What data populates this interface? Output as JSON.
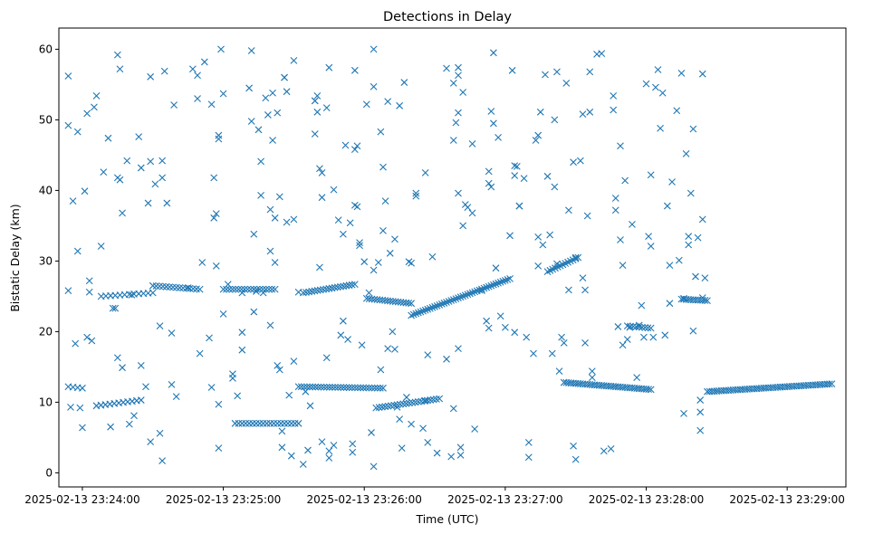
{
  "chart_data": {
    "type": "scatter",
    "title": "Detections in Delay",
    "xlabel": "Time (UTC)",
    "ylabel": "Bistatic Delay (km)",
    "marker": "x",
    "color": "#1f77b4",
    "x_unit": "seconds after 2025-02-13 23:24:00 UTC",
    "xlim": [
      -10,
      325
    ],
    "ylim": [
      -2,
      63
    ],
    "x_ticks": [
      {
        "value": 0,
        "label": "2025-02-13 23:24:00"
      },
      {
        "value": 60,
        "label": "2025-02-13 23:25:00"
      },
      {
        "value": 120,
        "label": "2025-02-13 23:26:00"
      },
      {
        "value": 180,
        "label": "2025-02-13 23:27:00"
      },
      {
        "value": 240,
        "label": "2025-02-13 23:28:00"
      },
      {
        "value": 300,
        "label": "2025-02-13 23:29:00"
      }
    ],
    "y_ticks": [
      {
        "value": 0,
        "label": "0"
      },
      {
        "value": 10,
        "label": "10"
      },
      {
        "value": 20,
        "label": "20"
      },
      {
        "value": 30,
        "label": "30"
      },
      {
        "value": 40,
        "label": "40"
      },
      {
        "value": 50,
        "label": "50"
      },
      {
        "value": 60,
        "label": "60"
      }
    ],
    "tracks": [
      {
        "name": "track-near-12km",
        "x_start": -6,
        "x_end": 0,
        "y_start": 12.2,
        "y_end": 12.0,
        "step": 2
      },
      {
        "name": "track-near-10km",
        "x_start": 6,
        "x_end": 25,
        "y_start": 9.5,
        "y_end": 10.3,
        "step": 2
      },
      {
        "name": "track-early-25km",
        "x_start": 8,
        "x_end": 30,
        "y_start": 25.0,
        "y_end": 25.5,
        "step": 2
      },
      {
        "name": "track-25km-a",
        "x_start": 30,
        "x_end": 50,
        "y_start": 26.5,
        "y_end": 26.0,
        "step": 1.4
      },
      {
        "name": "track-25km-b",
        "x_start": 60,
        "x_end": 82,
        "y_start": 26.0,
        "y_end": 26.0,
        "step": 1.3
      },
      {
        "name": "track-7km",
        "x_start": 65,
        "x_end": 92,
        "y_start": 7.0,
        "y_end": 7.0,
        "step": 1.5
      },
      {
        "name": "track-12km-mid",
        "x_start": 92,
        "x_end": 128,
        "y_start": 12.2,
        "y_end": 12.0,
        "step": 1.2
      },
      {
        "name": "track-25km-mid",
        "x_start": 94,
        "x_end": 116,
        "y_start": 25.5,
        "y_end": 26.7,
        "step": 1.2
      },
      {
        "name": "track-descending-24km",
        "x_start": 121,
        "x_end": 140,
        "y_start": 24.7,
        "y_end": 24.0,
        "step": 1.1
      },
      {
        "name": "track-rising-23-to-27km",
        "x_start": 140,
        "x_end": 182,
        "y_start": 22.3,
        "y_end": 27.5,
        "step": 1.0
      },
      {
        "name": "track-10km-mid",
        "x_start": 125,
        "x_end": 152,
        "y_start": 9.2,
        "y_end": 10.5,
        "step": 1.3
      },
      {
        "name": "track-rising-28-to-30km",
        "x_start": 198,
        "x_end": 211,
        "y_start": 28.5,
        "y_end": 30.5,
        "step": 1.1
      },
      {
        "name": "track-12km-late",
        "x_start": 205,
        "x_end": 242,
        "y_start": 12.8,
        "y_end": 11.8,
        "step": 1.0
      },
      {
        "name": "track-20km-late",
        "x_start": 232,
        "x_end": 242,
        "y_start": 20.8,
        "y_end": 20.5,
        "step": 1.2
      },
      {
        "name": "track-24km-late",
        "x_start": 255,
        "x_end": 266,
        "y_start": 24.6,
        "y_end": 24.4,
        "step": 1.0
      },
      {
        "name": "track-rising-11-to-12km",
        "x_start": 266,
        "x_end": 319,
        "y_start": 11.5,
        "y_end": 12.6,
        "step": 1.0
      }
    ],
    "points": [
      [
        -6,
        56.2
      ],
      [
        -6,
        49.2
      ],
      [
        -6,
        25.8
      ],
      [
        -5,
        9.3
      ],
      [
        -4,
        38.5
      ],
      [
        -3,
        18.3
      ],
      [
        -2,
        31.4
      ],
      [
        -2,
        48.3
      ],
      [
        -1,
        9.2
      ],
      [
        0,
        6.4
      ],
      [
        1,
        39.9
      ],
      [
        2,
        50.9
      ],
      [
        2,
        19.2
      ],
      [
        3,
        27.2
      ],
      [
        3,
        25.6
      ],
      [
        4,
        18.7
      ],
      [
        5,
        51.8
      ],
      [
        6,
        53.4
      ],
      [
        8,
        32.1
      ],
      [
        9,
        42.6
      ],
      [
        11,
        47.4
      ],
      [
        12,
        6.5
      ],
      [
        13,
        23.3
      ],
      [
        14,
        23.3
      ],
      [
        15,
        59.2
      ],
      [
        15,
        41.8
      ],
      [
        15,
        16.3
      ],
      [
        16,
        57.2
      ],
      [
        16,
        41.5
      ],
      [
        17,
        36.8
      ],
      [
        17,
        14.9
      ],
      [
        19,
        44.2
      ],
      [
        20,
        6.9
      ],
      [
        21,
        25.2
      ],
      [
        22,
        8.1
      ],
      [
        24,
        47.6
      ],
      [
        25,
        43.2
      ],
      [
        25,
        15.2
      ],
      [
        27,
        12.2
      ],
      [
        28,
        38.2
      ],
      [
        29,
        44.1
      ],
      [
        29,
        56.1
      ],
      [
        29,
        4.4
      ],
      [
        31,
        40.9
      ],
      [
        33,
        5.6
      ],
      [
        33,
        20.8
      ],
      [
        34,
        1.7
      ],
      [
        34,
        44.2
      ],
      [
        34,
        41.8
      ],
      [
        35,
        56.9
      ],
      [
        36,
        38.2
      ],
      [
        38,
        19.8
      ],
      [
        39,
        52.1
      ],
      [
        38,
        12.5
      ],
      [
        40,
        10.8
      ],
      [
        45,
        26.2
      ],
      [
        47,
        57.2
      ],
      [
        49,
        56.3
      ],
      [
        49,
        53
      ],
      [
        50,
        16.9
      ],
      [
        51,
        29.8
      ],
      [
        52,
        58.2
      ],
      [
        54,
        19.1
      ],
      [
        55,
        12.1
      ],
      [
        55,
        52.2
      ],
      [
        56,
        41.8
      ],
      [
        56,
        36.1
      ],
      [
        57,
        36.7
      ],
      [
        58,
        47.8
      ],
      [
        58,
        47.3
      ],
      [
        57,
        29.3
      ],
      [
        59,
        60
      ],
      [
        60,
        53.7
      ],
      [
        58,
        3.5
      ],
      [
        58,
        9.7
      ],
      [
        60,
        22.5
      ],
      [
        62,
        26.7
      ],
      [
        64,
        14
      ],
      [
        64,
        13.4
      ],
      [
        66,
        10.9
      ],
      [
        68,
        25.5
      ],
      [
        68,
        19.9
      ],
      [
        68,
        17.4
      ],
      [
        71,
        54.5
      ],
      [
        72,
        59.8
      ],
      [
        72,
        49.8
      ],
      [
        73,
        33.8
      ],
      [
        73,
        22.8
      ],
      [
        74,
        25.7
      ],
      [
        75,
        48.6
      ],
      [
        76,
        44.1
      ],
      [
        76,
        39.3
      ],
      [
        77,
        25.5
      ],
      [
        78,
        53.1
      ],
      [
        79,
        50.7
      ],
      [
        80,
        37.3
      ],
      [
        80,
        31.4
      ],
      [
        80,
        20.9
      ],
      [
        81,
        53.8
      ],
      [
        81,
        47.1
      ],
      [
        82,
        29.8
      ],
      [
        82,
        36.1
      ],
      [
        83,
        51
      ],
      [
        83,
        15.2
      ],
      [
        84,
        39.1
      ],
      [
        84,
        14.6
      ],
      [
        85,
        5.9
      ],
      [
        85,
        3.6
      ],
      [
        86,
        56
      ],
      [
        86,
        56
      ],
      [
        87,
        35.5
      ],
      [
        87,
        54
      ],
      [
        88,
        11
      ],
      [
        89,
        2.4
      ],
      [
        90,
        58.4
      ],
      [
        90,
        35.9
      ],
      [
        90,
        15.8
      ],
      [
        92,
        25.6
      ],
      [
        94,
        1.2
      ],
      [
        95,
        11.5
      ],
      [
        96,
        3.2
      ],
      [
        97,
        9.5
      ],
      [
        99,
        48
      ],
      [
        99,
        52.7
      ],
      [
        99,
        52.7
      ],
      [
        100,
        53.4
      ],
      [
        100,
        51.1
      ],
      [
        101,
        29.1
      ],
      [
        101,
        43.1
      ],
      [
        102,
        42.5
      ],
      [
        102,
        39
      ],
      [
        102,
        4.4
      ],
      [
        104,
        51.7
      ],
      [
        104,
        16.3
      ],
      [
        105,
        57.4
      ],
      [
        105,
        3.1
      ],
      [
        105,
        2.1
      ],
      [
        107,
        40.1
      ],
      [
        107,
        3.9
      ],
      [
        109,
        35.8
      ],
      [
        110,
        19.5
      ],
      [
        111,
        21.5
      ],
      [
        111,
        33.8
      ],
      [
        112,
        46.4
      ],
      [
        113,
        18.9
      ],
      [
        114,
        35.4
      ],
      [
        115,
        4.1
      ],
      [
        115,
        2.9
      ],
      [
        116,
        45.8
      ],
      [
        116,
        37.9
      ],
      [
        116,
        57
      ],
      [
        117,
        46.3
      ],
      [
        117,
        37.7
      ],
      [
        118,
        32.6
      ],
      [
        118,
        32.2
      ],
      [
        119,
        18.1
      ],
      [
        120,
        29.9
      ],
      [
        121,
        52.2
      ],
      [
        122,
        25.5
      ],
      [
        123,
        5.7
      ],
      [
        124,
        0.9
      ],
      [
        124,
        60
      ],
      [
        124,
        54.7
      ],
      [
        124,
        28.7
      ],
      [
        126,
        29.8
      ],
      [
        127,
        14.6
      ],
      [
        127,
        48.3
      ],
      [
        128,
        34.3
      ],
      [
        128,
        43.3
      ],
      [
        129,
        38.5
      ],
      [
        130,
        17.6
      ],
      [
        130,
        52.6
      ],
      [
        131,
        31.1
      ],
      [
        132,
        20
      ],
      [
        133,
        17.5
      ],
      [
        133,
        33.1
      ],
      [
        134,
        9.3
      ],
      [
        135,
        7.6
      ],
      [
        135,
        52
      ],
      [
        136,
        3.5
      ],
      [
        137,
        55.3
      ],
      [
        138,
        10.7
      ],
      [
        139,
        29.9
      ],
      [
        140,
        29.7
      ],
      [
        140,
        6.9
      ],
      [
        142,
        39.6
      ],
      [
        142,
        39.2
      ],
      [
        145,
        6.3
      ],
      [
        146,
        42.5
      ],
      [
        146,
        10.2
      ],
      [
        147,
        4.3
      ],
      [
        147,
        16.7
      ],
      [
        149,
        30.6
      ],
      [
        151,
        2.8
      ],
      [
        155,
        57.3
      ],
      [
        155,
        16.1
      ],
      [
        157,
        2.3
      ],
      [
        158,
        47.1
      ],
      [
        158,
        55.2
      ],
      [
        158,
        9.1
      ],
      [
        159,
        49.6
      ],
      [
        160,
        57.4
      ],
      [
        160,
        56.3
      ],
      [
        160,
        51
      ],
      [
        160,
        39.6
      ],
      [
        160,
        17.6
      ],
      [
        161,
        3.6
      ],
      [
        161,
        2.5
      ],
      [
        162,
        53.9
      ],
      [
        162,
        35
      ],
      [
        163,
        38
      ],
      [
        164,
        37.6
      ],
      [
        166,
        46.6
      ],
      [
        166,
        36.8
      ],
      [
        167,
        6.2
      ],
      [
        170,
        25.8
      ],
      [
        172,
        21.5
      ],
      [
        173,
        42.7
      ],
      [
        173,
        41
      ],
      [
        173,
        20.5
      ],
      [
        174,
        40.5
      ],
      [
        174,
        51.2
      ],
      [
        175,
        59.5
      ],
      [
        175,
        49.5
      ],
      [
        176,
        29
      ],
      [
        177,
        47.5
      ],
      [
        178,
        22.2
      ],
      [
        180,
        20.6
      ],
      [
        182,
        33.6
      ],
      [
        183,
        57
      ],
      [
        184,
        42.1
      ],
      [
        184,
        43.5
      ],
      [
        184,
        19.9
      ],
      [
        185,
        43.4
      ],
      [
        186,
        37.8
      ],
      [
        186,
        37.8
      ],
      [
        188,
        41.7
      ],
      [
        189,
        19.2
      ],
      [
        190,
        4.3
      ],
      [
        190,
        2.2
      ],
      [
        192,
        16.9
      ],
      [
        193,
        47.1
      ],
      [
        194,
        47.8
      ],
      [
        194,
        29.3
      ],
      [
        194,
        33.4
      ],
      [
        195,
        51.1
      ],
      [
        196,
        32.3
      ],
      [
        197,
        56.4
      ],
      [
        198,
        42
      ],
      [
        199,
        33.7
      ],
      [
        200,
        16.9
      ],
      [
        201,
        40.5
      ],
      [
        201,
        50
      ],
      [
        202,
        56.8
      ],
      [
        202,
        29.6
      ],
      [
        203,
        14.4
      ],
      [
        204,
        19.2
      ],
      [
        205,
        18.4
      ],
      [
        206,
        55.2
      ],
      [
        207,
        25.9
      ],
      [
        207,
        37.2
      ],
      [
        209,
        44
      ],
      [
        209,
        3.8
      ],
      [
        210,
        30.5
      ],
      [
        210,
        1.9
      ],
      [
        212,
        44.2
      ],
      [
        213,
        50.8
      ],
      [
        213,
        27.6
      ],
      [
        214,
        25.9
      ],
      [
        214,
        18.4
      ],
      [
        215,
        36.4
      ],
      [
        216,
        51.1
      ],
      [
        216,
        56.8
      ],
      [
        217,
        13.5
      ],
      [
        217,
        14.4
      ],
      [
        219,
        59.3
      ],
      [
        221,
        59.4
      ],
      [
        222,
        3.1
      ],
      [
        225,
        3.4
      ],
      [
        226,
        51.4
      ],
      [
        226,
        53.4
      ],
      [
        227,
        38.9
      ],
      [
        227,
        37.2
      ],
      [
        228,
        20.7
      ],
      [
        229,
        46.3
      ],
      [
        229,
        33
      ],
      [
        230,
        18.1
      ],
      [
        230,
        29.4
      ],
      [
        231,
        41.4
      ],
      [
        232,
        18.9
      ],
      [
        233,
        20.6
      ],
      [
        234,
        35.2
      ],
      [
        236,
        13.5
      ],
      [
        237,
        20.9
      ],
      [
        238,
        23.7
      ],
      [
        239,
        19.2
      ],
      [
        240,
        55.1
      ],
      [
        241,
        33.5
      ],
      [
        242,
        32.1
      ],
      [
        242,
        42.2
      ],
      [
        243,
        19.2
      ],
      [
        244,
        54.6
      ],
      [
        245,
        57.1
      ],
      [
        246,
        48.8
      ],
      [
        247,
        53.8
      ],
      [
        248,
        19.5
      ],
      [
        249,
        37.8
      ],
      [
        250,
        24
      ],
      [
        250,
        29.4
      ],
      [
        251,
        41.2
      ],
      [
        253,
        51.3
      ],
      [
        254,
        30.1
      ],
      [
        255,
        56.6
      ],
      [
        256,
        8.4
      ],
      [
        256,
        24.7
      ],
      [
        257,
        45.2
      ],
      [
        258,
        33.5
      ],
      [
        258,
        32.3
      ],
      [
        259,
        39.6
      ],
      [
        260,
        20.1
      ],
      [
        260,
        48.7
      ],
      [
        261,
        27.8
      ],
      [
        262,
        33.3
      ],
      [
        263,
        10.3
      ],
      [
        263,
        8.6
      ],
      [
        263,
        6
      ],
      [
        264,
        56.5
      ],
      [
        264,
        35.9
      ],
      [
        264,
        24.8
      ],
      [
        265,
        27.6
      ]
    ]
  }
}
